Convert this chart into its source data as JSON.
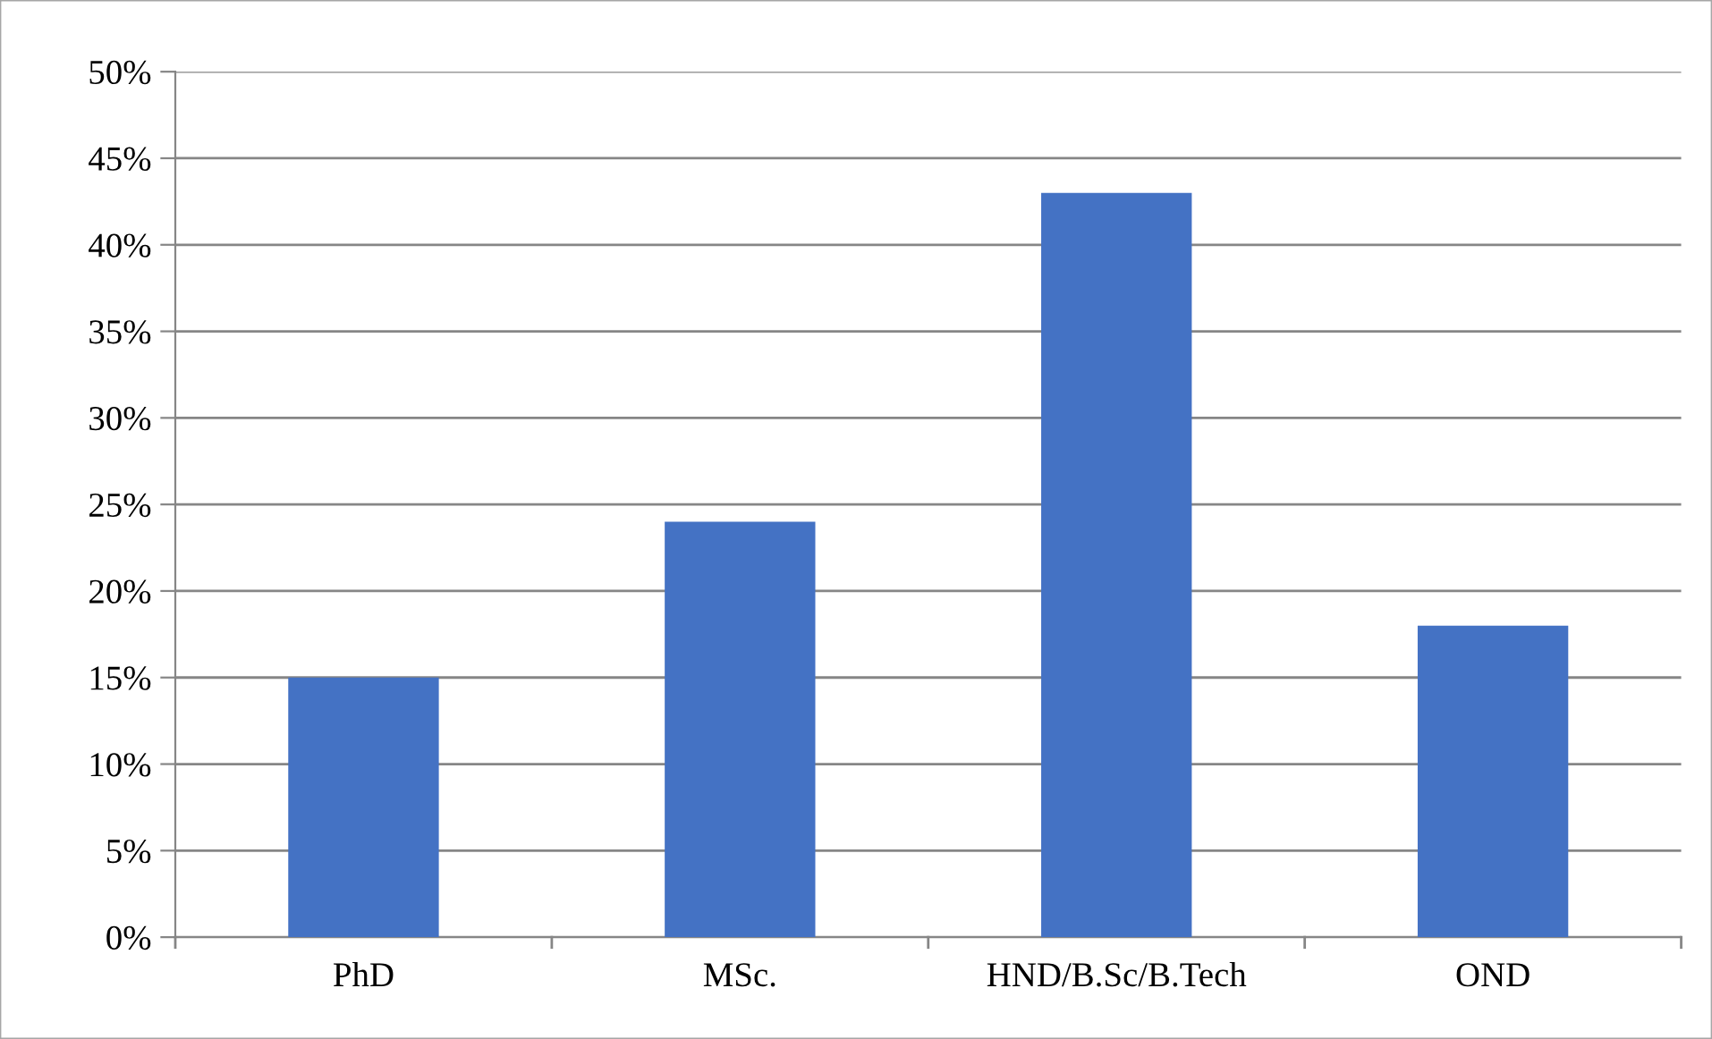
{
  "chart_data": {
    "type": "bar",
    "categories": [
      "PhD",
      "MSc.",
      "HND/B.Sc/B.Tech",
      "OND"
    ],
    "values": [
      15,
      24,
      43,
      18
    ],
    "color": "#4472c4",
    "ylim": [
      0,
      50
    ],
    "yticks": [
      {
        "value": 0,
        "label": "0%"
      },
      {
        "value": 5,
        "label": "5%"
      },
      {
        "value": 10,
        "label": "10%"
      },
      {
        "value": 15,
        "label": "15%"
      },
      {
        "value": 20,
        "label": "20%"
      },
      {
        "value": 25,
        "label": "25%"
      },
      {
        "value": 30,
        "label": "30%"
      },
      {
        "value": 35,
        "label": "35%"
      },
      {
        "value": 40,
        "label": "40%"
      },
      {
        "value": 45,
        "label": "45%"
      },
      {
        "value": 50,
        "label": "50%"
      }
    ],
    "grid": "y",
    "legend": false
  }
}
